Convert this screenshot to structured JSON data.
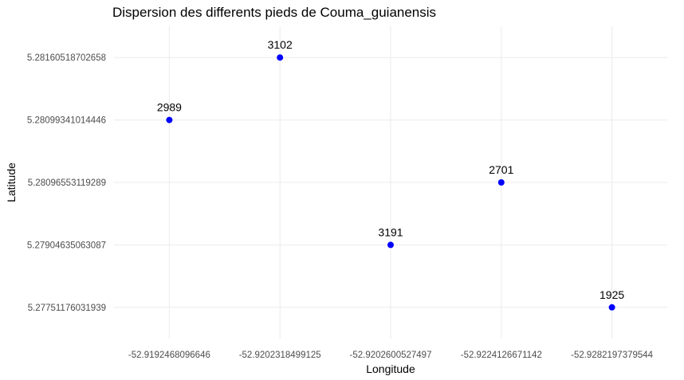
{
  "chart_data": {
    "type": "scatter",
    "title": "Dispersion des differents pieds de Couma_guianensis",
    "xlabel": "Longitude",
    "ylabel": "Latitude",
    "x_axis_type": "categorical",
    "y_axis_type": "categorical",
    "x_categories": [
      "-52.9192468096646",
      "-52.9202318499125",
      "-52.9202600527497",
      "-52.9224126671142",
      "-52.9282197379544"
    ],
    "y_categories": [
      "5.27751176031939",
      "5.27904635063087",
      "5.28096553119289",
      "5.28099341014446",
      "5.28160518702658"
    ],
    "grid": true,
    "legend": "none",
    "point_color": "#0000ff",
    "points": [
      {
        "x": "-52.9192468096646",
        "y": "5.28099341014446",
        "label": "2989"
      },
      {
        "x": "-52.9202318499125",
        "y": "5.28160518702658",
        "label": "3102"
      },
      {
        "x": "-52.9202600527497",
        "y": "5.27904635063087",
        "label": "3191"
      },
      {
        "x": "-52.9224126671142",
        "y": "5.28096553119289",
        "label": "2701"
      },
      {
        "x": "-52.9282197379544",
        "y": "5.27751176031939",
        "label": "1925"
      }
    ]
  }
}
